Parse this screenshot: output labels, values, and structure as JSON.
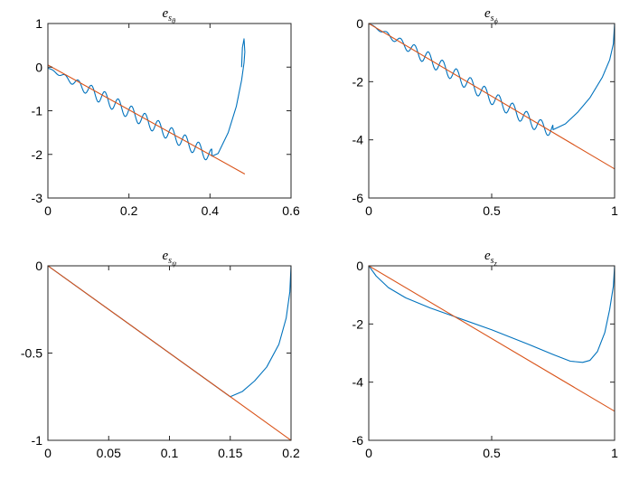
{
  "chart_data": [
    {
      "type": "line",
      "title": {
        "base": "e",
        "sub": "s",
        "subsub": "θ"
      },
      "xlim": [
        0,
        0.6
      ],
      "ylim": [
        -3,
        1
      ],
      "xticks": [
        0,
        0.2,
        0.4,
        0.6
      ],
      "xtick_labels": [
        "0",
        "0.2",
        "0.4",
        "0.6"
      ],
      "yticks": [
        1,
        0,
        -1,
        -2,
        -3
      ],
      "ytick_labels": [
        "1",
        "0",
        "-1",
        "-2",
        "-3"
      ],
      "grid": false,
      "series": [
        {
          "color": "#0072BD",
          "style": "wavy",
          "wave_amp": 0.04,
          "wave_freq": 190,
          "x": [
            0,
            0.1,
            0.2,
            0.3,
            0.38,
            0.405,
            0.42,
            0.445,
            0.465,
            0.478,
            0.484,
            0.486,
            0.484,
            0.48,
            0.478
          ],
          "y": [
            -0.02,
            -0.52,
            -1.02,
            -1.52,
            -1.92,
            -2.04,
            -1.98,
            -1.5,
            -0.9,
            -0.3,
            0.1,
            0.35,
            0.65,
            0.45,
            0.0
          ]
        },
        {
          "color": "#D95319",
          "x": [
            0,
            0.486
          ],
          "y": [
            0.05,
            -2.45
          ]
        }
      ]
    },
    {
      "type": "line",
      "title": {
        "base": "e",
        "sub": "s",
        "subsub": "ϕ"
      },
      "xlim": [
        0,
        1
      ],
      "ylim": [
        -6,
        0
      ],
      "xticks": [
        0,
        0.5,
        1
      ],
      "xtick_labels": [
        "0",
        "0.5",
        "1"
      ],
      "yticks": [
        0,
        -2,
        -4,
        -6
      ],
      "ytick_labels": [
        "0",
        "-2",
        "-4",
        "-6"
      ],
      "grid": false,
      "series": [
        {
          "color": "#0072BD",
          "style": "wavy",
          "wave_amp": 0.04,
          "wave_freq": 110,
          "x": [
            0,
            0.1,
            0.3,
            0.5,
            0.7,
            0.75,
            0.8,
            0.85,
            0.9,
            0.95,
            0.98,
            0.995,
            1.0
          ],
          "y": [
            0,
            -0.5,
            -1.5,
            -2.55,
            -3.55,
            -3.65,
            -3.45,
            -3.05,
            -2.55,
            -1.85,
            -1.25,
            -0.7,
            0.0
          ]
        },
        {
          "color": "#D95319",
          "x": [
            0,
            1
          ],
          "y": [
            0,
            -5
          ]
        }
      ]
    },
    {
      "type": "line",
      "title": {
        "base": "e",
        "sub": "s",
        "subsub": "ψ"
      },
      "xlim": [
        0,
        0.2
      ],
      "ylim": [
        -1,
        0
      ],
      "xticks": [
        0,
        0.05,
        0.1,
        0.15,
        0.2
      ],
      "xtick_labels": [
        "0",
        "0.05",
        "0.1",
        "0.15",
        "0.2"
      ],
      "yticks": [
        0,
        -0.5,
        -1
      ],
      "ytick_labels": [
        "0",
        "-0.5",
        "-1"
      ],
      "grid": false,
      "series": [
        {
          "color": "#0072BD",
          "x": [
            0,
            0.15,
            0.16,
            0.17,
            0.18,
            0.19,
            0.196,
            0.199,
            0.2
          ],
          "y": [
            0,
            -0.75,
            -0.72,
            -0.66,
            -0.58,
            -0.45,
            -0.3,
            -0.15,
            0.0
          ]
        },
        {
          "color": "#D95319",
          "x": [
            0,
            0.2
          ],
          "y": [
            0,
            -1
          ]
        }
      ]
    },
    {
      "type": "line",
      "title": {
        "base": "e",
        "sub": "s",
        "subsub": "z"
      },
      "xlim": [
        0,
        1
      ],
      "ylim": [
        -6,
        0
      ],
      "xticks": [
        0,
        0.5,
        1
      ],
      "xtick_labels": [
        "0",
        "0.5",
        "1"
      ],
      "yticks": [
        0,
        -2,
        -4,
        -6
      ],
      "ytick_labels": [
        "0",
        "-2",
        "-4",
        "-6"
      ],
      "grid": false,
      "series": [
        {
          "color": "#0072BD",
          "x": [
            0,
            0.03,
            0.08,
            0.15,
            0.25,
            0.35,
            0.5,
            0.65,
            0.75,
            0.82,
            0.87,
            0.9,
            0.93,
            0.96,
            0.98,
            0.995,
            1.0
          ],
          "y": [
            0,
            -0.35,
            -0.75,
            -1.1,
            -1.45,
            -1.75,
            -2.2,
            -2.7,
            -3.05,
            -3.28,
            -3.32,
            -3.25,
            -2.95,
            -2.3,
            -1.5,
            -0.7,
            0.0
          ]
        },
        {
          "color": "#D95319",
          "x": [
            0,
            1
          ],
          "y": [
            0,
            -5
          ]
        }
      ]
    }
  ]
}
